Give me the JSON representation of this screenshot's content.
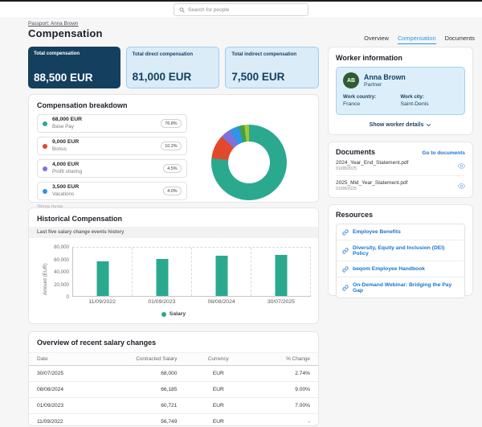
{
  "header": {
    "search_placeholder": "Search for people"
  },
  "breadcrumb": {
    "label": "Passport: Anna Brown"
  },
  "page": {
    "title": "Compensation"
  },
  "tabs": [
    {
      "label": "Overview"
    },
    {
      "label": "Compensation"
    },
    {
      "label": "Documents"
    }
  ],
  "kpis": [
    {
      "label": "Total compensation",
      "value": "88,500 EUR"
    },
    {
      "label": "Total direct compensation",
      "value": "81,000 EUR"
    },
    {
      "label": "Total indirect compensation",
      "value": "7,500 EUR"
    }
  ],
  "breakdown": {
    "title": "Compensation breakdown",
    "items": [
      {
        "amount": "68,000 EUR",
        "label": "Base Pay",
        "percent": "76.8%",
        "color": "#2aa98f"
      },
      {
        "amount": "9,000 EUR",
        "label": "Bonus",
        "percent": "10.2%",
        "color": "#e2492b"
      },
      {
        "amount": "4,000 EUR",
        "label": "Profit sharing",
        "percent": "4.5%",
        "color": "#7e72d9"
      },
      {
        "amount": "3,500 EUR",
        "label": "Vacations",
        "percent": "4.0%",
        "color": "#2d96e8"
      }
    ],
    "show_more_label": "Show more"
  },
  "worker": {
    "title": "Worker information",
    "initials": "AB",
    "name": "Anna Brown",
    "role": "Partner",
    "work_country_label": "Work country:",
    "work_country": "France",
    "work_city_label": "Work city:",
    "work_city": "Saint-Denis",
    "details_label": "Show worker details"
  },
  "documents": {
    "title": "Documents",
    "link_label": "Go to documents",
    "items": [
      {
        "name": "2024_Year_End_Statement.pdf",
        "date": "01/08/2025"
      },
      {
        "name": "2025_Mid_Year_Statement.pdf",
        "date": "01/08/2025"
      }
    ]
  },
  "resources": {
    "title": "Resources",
    "links": [
      "Employee Benefits",
      "Diversity, Equity and Inclusion (DEI) Policy",
      "beqom Employee Handbook",
      "On-Demand Webinar: Bridging the Pay Gap"
    ]
  },
  "history": {
    "title": "Historical Compensation",
    "subtitle": "Last five salary change events history"
  },
  "salary_table": {
    "title": "Overview of recent salary changes",
    "columns": [
      "Date",
      "Contracted Salary",
      "Currency",
      "% Change"
    ],
    "rows": [
      {
        "date": "30/07/2025",
        "salary": "68,000",
        "currency": "EUR",
        "change": "2.74%"
      },
      {
        "date": "08/08/2024",
        "salary": "66,185",
        "currency": "EUR",
        "change": "9.00%"
      },
      {
        "date": "01/09/2023",
        "salary": "60,721",
        "currency": "EUR",
        "change": "7.00%"
      },
      {
        "date": "11/09/2022",
        "salary": "56,749",
        "currency": "EUR",
        "change": "-"
      }
    ]
  },
  "chart_data": [
    {
      "type": "pie",
      "title": "Compensation breakdown",
      "slices": [
        {
          "label": "Base Pay",
          "value": 76.8,
          "color": "#2aa98f"
        },
        {
          "label": "Bonus",
          "value": 10.2,
          "color": "#e2492b"
        },
        {
          "label": "Profit sharing",
          "value": 4.5,
          "color": "#7e72d9"
        },
        {
          "label": "Vacations",
          "value": 4.0,
          "color": "#2d96e8"
        },
        {
          "label": "other-1",
          "value": 2.5,
          "color": "#43a047"
        },
        {
          "label": "other-2",
          "value": 2.0,
          "color": "#a0c832"
        }
      ]
    },
    {
      "type": "bar",
      "categories": [
        "11/09/2022",
        "01/09/2023",
        "08/08/2024",
        "30/07/2025"
      ],
      "values": [
        56749,
        60721,
        66185,
        68000
      ],
      "color": "#2aa98f",
      "ylabel": "Amount (EUR)",
      "yticks": [
        "80,000",
        "60,000",
        "40,000",
        "20,000",
        "0"
      ],
      "ylim": [
        0,
        80000
      ],
      "legend": [
        {
          "label": "Salary",
          "color": "#2aa98f"
        }
      ]
    }
  ],
  "colors": {
    "dark_navy": "#153f5e",
    "link_blue": "#1b74ce",
    "tab_blue": "#2d96e8",
    "teal": "#2aa98f"
  }
}
